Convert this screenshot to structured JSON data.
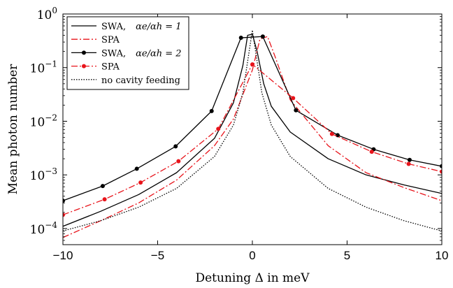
{
  "chart_data": {
    "type": "line",
    "xlabel": "Detuning Δ in meV",
    "ylabel": "Mean photon number",
    "xlim": [
      -10,
      10
    ],
    "ylim": [
      5e-05,
      1
    ],
    "yscale": "log",
    "x_ticks": [
      {
        "value": -10,
        "label": "−10"
      },
      {
        "value": -5,
        "label": "−5"
      },
      {
        "value": 0,
        "label": "0"
      },
      {
        "value": 5,
        "label": "5"
      },
      {
        "value": 10,
        "label": "10"
      }
    ],
    "y_ticks": [
      {
        "value": 0.0001,
        "base": "10",
        "exp": "−4"
      },
      {
        "value": 0.001,
        "base": "10",
        "exp": "−3"
      },
      {
        "value": 0.01,
        "base": "10",
        "exp": "−2"
      },
      {
        "value": 0.1,
        "base": "10",
        "exp": "−1"
      },
      {
        "value": 1,
        "base": "10",
        "exp": "0"
      }
    ],
    "legend_position": "top-left",
    "grid": false,
    "colors": {
      "black": "#000000",
      "red": "#e8141b"
    },
    "series": [
      {
        "label": "SWA,",
        "label_math": "αe/αh = 1",
        "color": "#000000",
        "style": "solid",
        "marker": false,
        "x": [
          -10,
          -8,
          -6,
          -4,
          -2,
          -1,
          -0.5,
          -0.25,
          0,
          0.25,
          0.6,
          1,
          2,
          4,
          6,
          8,
          10
        ],
        "y": [
          0.00011,
          0.00021,
          0.00043,
          0.0011,
          0.0048,
          0.022,
          0.11,
          0.4,
          0.42,
          0.2,
          0.05,
          0.019,
          0.0063,
          0.002,
          0.001,
          0.00065,
          0.00045
        ]
      },
      {
        "label": "SPA",
        "color": "#e8141b",
        "style": "dashdot",
        "marker": false,
        "x": [
          -10,
          -8,
          -6,
          -4,
          -2,
          -1,
          0,
          0.4,
          0.8,
          1.2,
          2,
          4,
          6,
          8,
          10
        ],
        "y": [
          6.8e-05,
          0.00014,
          0.0003,
          0.0008,
          0.0035,
          0.011,
          0.09,
          0.34,
          0.38,
          0.16,
          0.025,
          0.0035,
          0.0011,
          0.00058,
          0.00033
        ]
      },
      {
        "label": "SWA,",
        "label_math": "αe/αh = 2",
        "color": "#000000",
        "style": "solid",
        "marker": true,
        "x": [
          -10,
          -7.9,
          -6.1,
          -4.05,
          -2.15,
          -0.6,
          0.55,
          2.3,
          4.5,
          6.4,
          8.3,
          10
        ],
        "y": [
          0.00033,
          0.00062,
          0.0013,
          0.0034,
          0.0155,
          0.36,
          0.38,
          0.016,
          0.0055,
          0.003,
          0.0019,
          0.00145
        ]
      },
      {
        "label": "SPA",
        "color": "#e8141b",
        "style": "dashdot",
        "marker": true,
        "x": [
          -10,
          -7.8,
          -5.9,
          -3.9,
          -1.8,
          0,
          2.15,
          4.2,
          6.3,
          8.25,
          10
        ],
        "y": [
          0.00018,
          0.00035,
          0.00072,
          0.0018,
          0.0072,
          0.115,
          0.027,
          0.0058,
          0.0027,
          0.0016,
          0.00115
        ]
      },
      {
        "label": "no cavity feeding",
        "color": "#000000",
        "style": "dotted",
        "marker": false,
        "x": [
          -10,
          -8,
          -6,
          -4,
          -2,
          -1,
          -0.5,
          0,
          0.5,
          1,
          2,
          4,
          6,
          8,
          10
        ],
        "y": [
          9e-05,
          0.00014,
          0.00025,
          0.00056,
          0.0022,
          0.0085,
          0.034,
          0.5,
          0.034,
          0.0085,
          0.0022,
          0.00056,
          0.00025,
          0.00014,
          9e-05
        ]
      }
    ]
  }
}
